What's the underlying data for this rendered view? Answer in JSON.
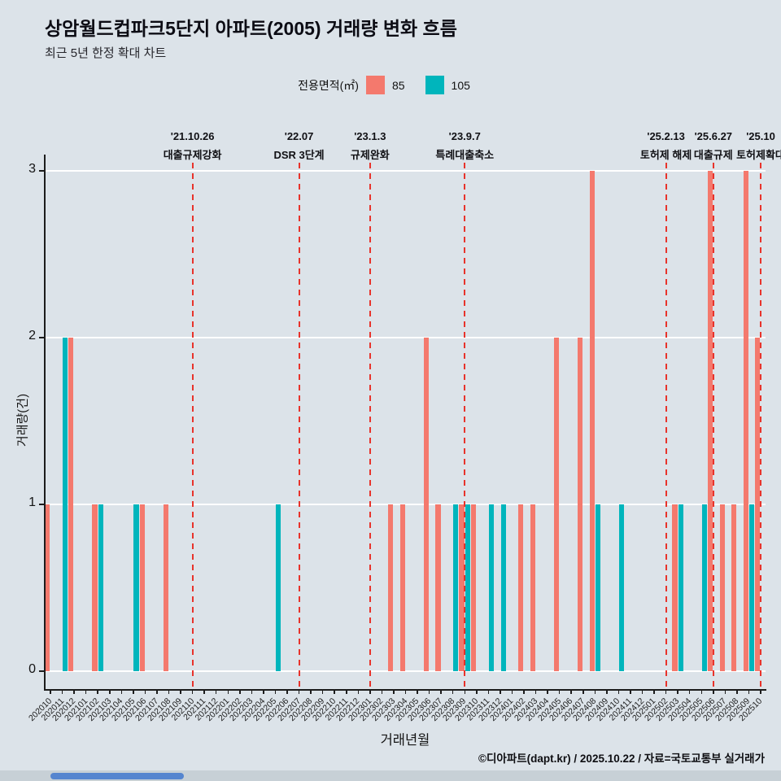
{
  "title": "상암월드컵파크5단지 아파트(2005) 거래량 변화 흐름",
  "subtitle": "최근 5년 한정 확대 차트",
  "legend": {
    "label": "전용면적(㎡)",
    "items": [
      {
        "name": "85",
        "color": "#f4796d"
      },
      {
        "name": "105",
        "color": "#00b5bc"
      }
    ]
  },
  "footer": "©디아파트(dapt.kr) / 2025.10.22 / 자료=국토교통부 실거래가",
  "colors": {
    "background": "#dce3e9",
    "gridline": "#ffffff"
  },
  "chart_data": {
    "type": "bar",
    "title": "상암월드컵파크5단지 아파트(2005) 거래량 변화 흐름",
    "subtitle": "최근 5년 한정 확대 차트",
    "xlabel": "거래년월",
    "ylabel": "거래량(건)",
    "ylim": [
      0,
      3
    ],
    "yticks": [
      0,
      1,
      2,
      3
    ],
    "grid": true,
    "legend_position": "top",
    "annotation_color": "#e8332b",
    "categories": [
      "202010",
      "202011",
      "202012",
      "202101",
      "202102",
      "202103",
      "202104",
      "202105",
      "202106",
      "202107",
      "202108",
      "202109",
      "202110",
      "202111",
      "202112",
      "202201",
      "202202",
      "202203",
      "202204",
      "202205",
      "202206",
      "202207",
      "202208",
      "202209",
      "202210",
      "202211",
      "202212",
      "202301",
      "202302",
      "202303",
      "202304",
      "202305",
      "202306",
      "202307",
      "202308",
      "202309",
      "202310",
      "202311",
      "202312",
      "202401",
      "202402",
      "202403",
      "202404",
      "202405",
      "202406",
      "202407",
      "202408",
      "202409",
      "202410",
      "202411",
      "202412",
      "202501",
      "202502",
      "202503",
      "202504",
      "202505",
      "202506",
      "202507",
      "202508",
      "202509",
      "202510"
    ],
    "series": [
      {
        "name": "85",
        "color": "#f4796d",
        "values": [
          1,
          0,
          2,
          0,
          1,
          0,
          0,
          0,
          1,
          0,
          1,
          0,
          0,
          0,
          0,
          0,
          0,
          0,
          0,
          0,
          0,
          0,
          0,
          0,
          0,
          0,
          0,
          0,
          0,
          1,
          1,
          0,
          2,
          1,
          0,
          1,
          1,
          0,
          0,
          0,
          1,
          1,
          0,
          2,
          0,
          2,
          3,
          0,
          0,
          0,
          0,
          0,
          0,
          1,
          0,
          0,
          3,
          1,
          1,
          3,
          2
        ]
      },
      {
        "name": "105",
        "color": "#00b5bc",
        "values": [
          0,
          2,
          0,
          0,
          1,
          0,
          0,
          1,
          0,
          0,
          0,
          0,
          0,
          0,
          0,
          0,
          0,
          0,
          0,
          1,
          0,
          0,
          0,
          0,
          0,
          0,
          0,
          0,
          0,
          0,
          0,
          0,
          0,
          0,
          1,
          1,
          0,
          1,
          1,
          0,
          0,
          0,
          0,
          0,
          0,
          0,
          1,
          0,
          1,
          0,
          0,
          0,
          0,
          1,
          0,
          1,
          0,
          0,
          0,
          1,
          0
        ]
      }
    ],
    "annotations": [
      {
        "month": "202110",
        "date": "'21.10.26",
        "label": "대출규제강화"
      },
      {
        "month": "202207",
        "date": "'22.07",
        "label": "DSR 3단계"
      },
      {
        "month": "202301",
        "date": "'23.1.3",
        "label": "규제완화"
      },
      {
        "month": "202309",
        "date": "'23.9.7",
        "label": "특례대출축소"
      },
      {
        "month": "202502",
        "date": "'25.2.13",
        "label": "토허제 해제"
      },
      {
        "month": "202506",
        "date": "'25.6.27",
        "label": "대출규제"
      },
      {
        "month": "202510",
        "date": "'25.10",
        "label": "토허제확대"
      }
    ]
  }
}
